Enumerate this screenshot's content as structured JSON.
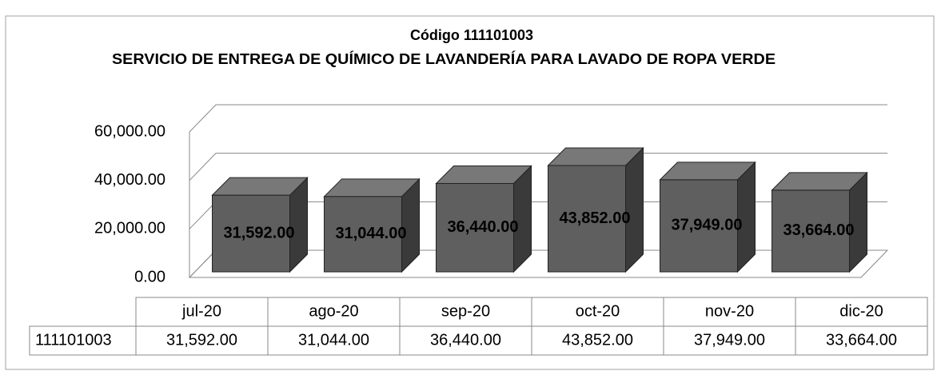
{
  "chart_data": {
    "type": "bar3d",
    "title": "Código 111101003",
    "subtitle": "SERVICIO DE ENTREGA DE QUÍMICO DE LAVANDERÍA PARA LAVADO DE ROPA VERDE",
    "categories": [
      "jul-20",
      "ago-20",
      "sep-20",
      "oct-20",
      "nov-20",
      "dic-20"
    ],
    "series": [
      {
        "name": "111101003",
        "color": "#5f5f5f",
        "values": [
          31592,
          31044,
          36440,
          43852,
          37949,
          33664
        ],
        "value_labels": [
          "31,592.00",
          "31,044.00",
          "36,440.00",
          "43,852.00",
          "37,949.00",
          "33,664.00"
        ]
      }
    ],
    "ylim": [
      0,
      60000
    ],
    "yticks": [
      {
        "value": 0,
        "label": "0.00"
      },
      {
        "value": 20000,
        "label": "20,000.00"
      },
      {
        "value": 40000,
        "label": "40,000.00"
      },
      {
        "value": 60000,
        "label": "60,000.00"
      }
    ],
    "grid": true,
    "data_table": true
  }
}
